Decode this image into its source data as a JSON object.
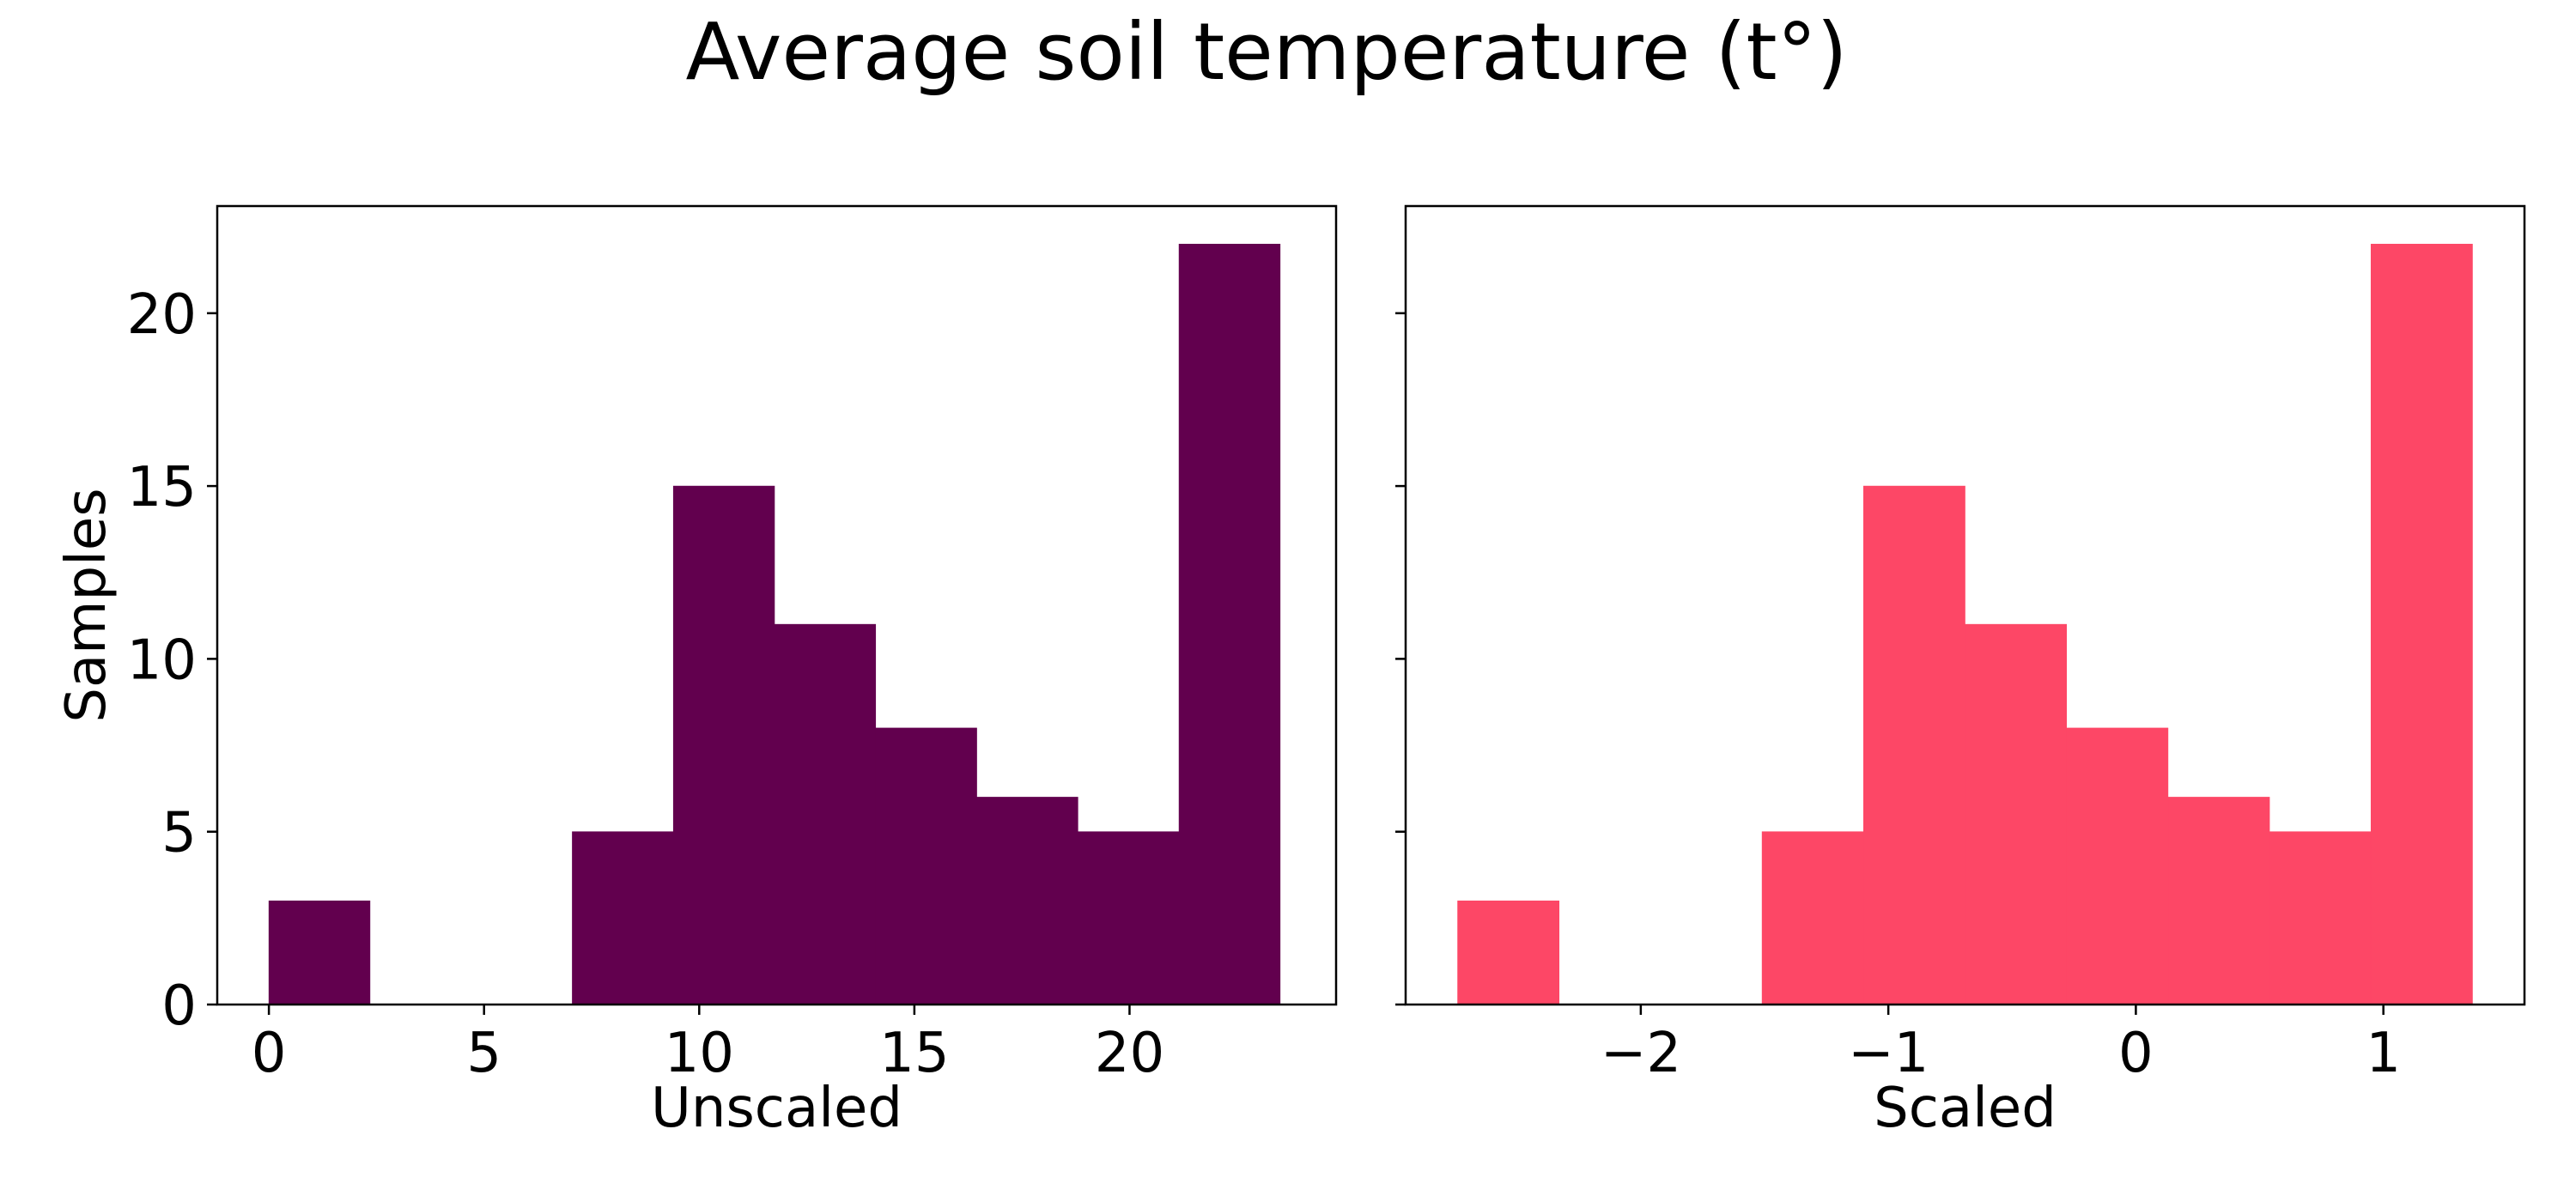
{
  "figure": {
    "title": "Average soil temperature (t°)",
    "y_label": "Samples"
  },
  "chart_data": [
    {
      "type": "bar",
      "xlabel": "Unscaled",
      "ylabel": "Samples",
      "xlim": [
        -1.2,
        24.8
      ],
      "ylim": [
        0,
        23.1
      ],
      "xticks": [
        0,
        5,
        10,
        15,
        20
      ],
      "xtick_labels": [
        "0",
        "5",
        "10",
        "15",
        "20"
      ],
      "yticks": [
        0,
        5,
        10,
        15,
        20
      ],
      "ytick_labels": [
        "0",
        "5",
        "10",
        "15",
        "20"
      ],
      "color": "#62004e",
      "bins": [
        {
          "x0": 0.0,
          "x1": 2.35,
          "count": 3
        },
        {
          "x0": 2.35,
          "x1": 4.7,
          "count": 0
        },
        {
          "x0": 4.7,
          "x1": 7.05,
          "count": 0
        },
        {
          "x0": 7.05,
          "x1": 9.4,
          "count": 5
        },
        {
          "x0": 9.4,
          "x1": 11.75,
          "count": 15
        },
        {
          "x0": 11.75,
          "x1": 14.1,
          "count": 11
        },
        {
          "x0": 14.1,
          "x1": 16.45,
          "count": 8
        },
        {
          "x0": 16.45,
          "x1": 18.8,
          "count": 6
        },
        {
          "x0": 18.8,
          "x1": 21.15,
          "count": 5
        },
        {
          "x0": 21.15,
          "x1": 23.5,
          "count": 22
        }
      ],
      "grid": false
    },
    {
      "type": "bar",
      "xlabel": "Scaled",
      "ylabel": "",
      "xlim": [
        -2.95,
        1.57
      ],
      "ylim": [
        0,
        23.1
      ],
      "xticks": [
        -2,
        -1,
        0,
        1
      ],
      "xtick_labels": [
        "−2",
        "−1",
        "0",
        "1"
      ],
      "yticks": [
        0,
        5,
        10,
        15,
        20
      ],
      "ytick_labels": [],
      "color": "#fd4766",
      "bins": [
        {
          "x0": -2.74,
          "x1": -2.33,
          "count": 3
        },
        {
          "x0": -2.33,
          "x1": -1.92,
          "count": 0
        },
        {
          "x0": -1.92,
          "x1": -1.51,
          "count": 0
        },
        {
          "x0": -1.51,
          "x1": -1.1,
          "count": 5
        },
        {
          "x0": -1.1,
          "x1": -0.69,
          "count": 15
        },
        {
          "x0": -0.69,
          "x1": -0.28,
          "count": 11
        },
        {
          "x0": -0.28,
          "x1": 0.13,
          "count": 8
        },
        {
          "x0": 0.13,
          "x1": 0.54,
          "count": 6
        },
        {
          "x0": 0.54,
          "x1": 0.95,
          "count": 5
        },
        {
          "x0": 0.95,
          "x1": 1.36,
          "count": 22
        }
      ],
      "grid": false
    }
  ]
}
